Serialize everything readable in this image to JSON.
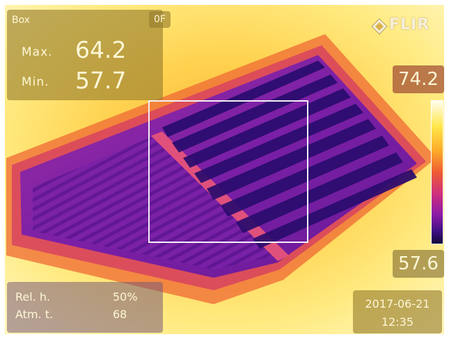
{
  "box_panel": {
    "title": "Box",
    "max_label": "Max.",
    "max_value": "64.2",
    "min_label": "Min.",
    "min_value": "57.7"
  },
  "unit": "0F",
  "brand": "FLIR",
  "scale": {
    "max": "74.2",
    "min": "57.6"
  },
  "info": {
    "rel_label": "Rel. h.",
    "rel_value": "50%",
    "atm_label": "Atm. t.",
    "atm_value": "68"
  },
  "datetime": {
    "date": "2017-06-21",
    "time": "12:35"
  },
  "colors": {
    "hot": "#fffdf0",
    "warm": "#fcaa28",
    "mid": "#d0307c",
    "cool": "#3a0f7e",
    "cold": "#120a38"
  },
  "icons": {
    "logo": "flir-logo-icon"
  }
}
